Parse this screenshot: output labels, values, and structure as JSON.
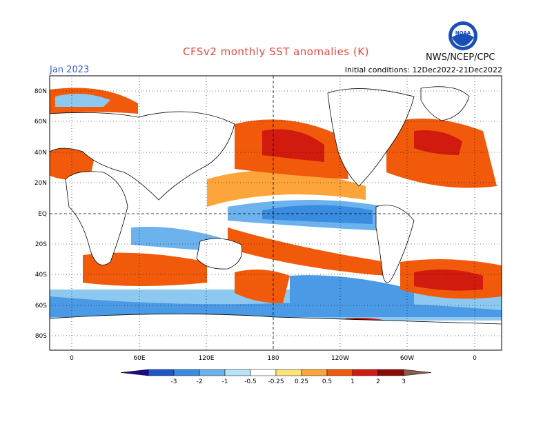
{
  "header": {
    "title": "CFSv2 monthly SST anomalies (K)",
    "month": "Jan 2023",
    "initial_conditions": "Initial conditions: 12Dec2022-21Dec2022",
    "agency": "NWS/NCEP/CPC",
    "logo_text": "NOAA"
  },
  "map": {
    "lat_labels": [
      "80N",
      "60N",
      "40N",
      "20N",
      "EQ",
      "20S",
      "40S",
      "60S",
      "80S"
    ],
    "lon_labels": [
      "0",
      "60E",
      "120E",
      "180",
      "120W",
      "60W",
      "0"
    ]
  },
  "colorbar": {
    "labels": [
      "-3",
      "-2",
      "-1",
      "-0.5",
      "-0.25",
      "0.25",
      "0.5",
      "1",
      "2",
      "3"
    ],
    "colors": [
      "#1e0a8c",
      "#1f55c8",
      "#3a8ce0",
      "#6cb2ec",
      "#b6e4f6",
      "#ffffff",
      "#fde27a",
      "#fda43a",
      "#f05a0a",
      "#d21b0f",
      "#8c0a05",
      "#8a5a4a"
    ]
  },
  "colors": {
    "land": "#ffffff",
    "frame": "#000000",
    "title": "#e8483c",
    "month": "#3a5bd6"
  }
}
